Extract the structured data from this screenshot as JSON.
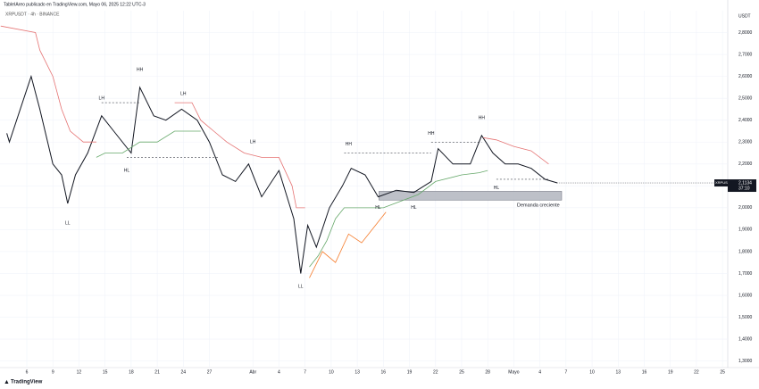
{
  "chart_data": {
    "type": "line",
    "title": "TableIAreo publicado en TradingView.com, Mayo 06, 2025 12:22 UTC-3",
    "subtitle": "XRPUSDT · 4h · BINANCE",
    "y_unit": "USDT",
    "brand": "TradingView",
    "grid": true,
    "xlim": [
      1.92,
      85.6
    ],
    "ylim": [
      1.27,
      2.9
    ],
    "xticks": [
      {
        "value": 5,
        "label": "6"
      },
      {
        "value": 8,
        "label": "9"
      },
      {
        "value": 11,
        "label": "12"
      },
      {
        "value": 14,
        "label": "15"
      },
      {
        "value": 17,
        "label": "18"
      },
      {
        "value": 20,
        "label": "21"
      },
      {
        "value": 23,
        "label": "24"
      },
      {
        "value": 26,
        "label": "27"
      },
      {
        "value": 31,
        "label": "Abr"
      },
      {
        "value": 34,
        "label": "4"
      },
      {
        "value": 37,
        "label": "7"
      },
      {
        "value": 40,
        "label": "10"
      },
      {
        "value": 43,
        "label": "13"
      },
      {
        "value": 46,
        "label": "16"
      },
      {
        "value": 49,
        "label": "19"
      },
      {
        "value": 52,
        "label": "22"
      },
      {
        "value": 55,
        "label": "25"
      },
      {
        "value": 58,
        "label": "28"
      },
      {
        "value": 61,
        "label": "Mayo"
      },
      {
        "value": 64,
        "label": "4"
      },
      {
        "value": 67,
        "label": "7"
      },
      {
        "value": 70,
        "label": "10"
      },
      {
        "value": 73,
        "label": "13"
      },
      {
        "value": 76,
        "label": "16"
      },
      {
        "value": 79,
        "label": "19"
      },
      {
        "value": 82,
        "label": "22"
      },
      {
        "value": 85,
        "label": "25"
      }
    ],
    "yticks": [
      {
        "value": 2.8,
        "label": "2,8000"
      },
      {
        "value": 2.7,
        "label": "2,7000"
      },
      {
        "value": 2.6,
        "label": "2,6000"
      },
      {
        "value": 2.5,
        "label": "2,5000"
      },
      {
        "value": 2.4,
        "label": "2,4000"
      },
      {
        "value": 2.3,
        "label": "2,3000"
      },
      {
        "value": 2.2,
        "label": "2,2000"
      },
      {
        "value": 2.1,
        "label": "2,1000"
      },
      {
        "value": 2.0,
        "label": "2,0000"
      },
      {
        "value": 1.9,
        "label": "1,9000"
      },
      {
        "value": 1.8,
        "label": "1,8000"
      },
      {
        "value": 1.7,
        "label": "1,7000"
      },
      {
        "value": 1.6,
        "label": "1,6000"
      },
      {
        "value": 1.5,
        "label": "1,5000"
      },
      {
        "value": 1.4,
        "label": "1,4000"
      },
      {
        "value": 1.3,
        "label": "1,3000"
      }
    ],
    "series": [
      {
        "name": "XRPUSDT",
        "color": "#131722",
        "x": [
          2.7,
          3,
          5,
          5.5,
          6.5,
          8,
          9,
          9.7,
          10.6,
          12,
          13.6,
          15,
          17,
          18,
          19.6,
          21,
          22.8,
          24.6,
          26,
          27.5,
          29,
          30.5,
          32,
          34,
          35.7,
          36.5,
          37.3,
          38.3,
          39.8,
          41.3,
          42.3,
          43.9,
          45.4,
          47.5,
          49.5,
          51.5,
          52.3,
          54,
          56,
          57.3,
          58.6,
          60,
          61.5,
          63,
          64.6,
          66
        ],
        "values": [
          2.34,
          2.3,
          2.54,
          2.6,
          2.45,
          2.2,
          2.15,
          2.02,
          2.15,
          2.25,
          2.42,
          2.35,
          2.25,
          2.55,
          2.42,
          2.4,
          2.45,
          2.4,
          2.3,
          2.15,
          2.12,
          2.2,
          2.05,
          2.17,
          1.95,
          1.7,
          1.92,
          1.82,
          2.0,
          2.1,
          2.18,
          2.15,
          2.05,
          2.08,
          2.07,
          2.12,
          2.27,
          2.2,
          2.2,
          2.33,
          2.25,
          2.2,
          2.2,
          2.18,
          2.13,
          2.1134
        ]
      },
      {
        "color": "#e57373",
        "x": [
          2,
          6,
          6.5,
          8,
          9,
          10,
          11.5,
          13,
          null,
          22,
          24,
          25,
          26.5,
          28,
          30,
          32,
          34,
          35.5,
          36,
          37,
          null,
          57.5,
          59,
          61,
          63,
          65
        ],
        "values": [
          2.83,
          2.8,
          2.72,
          2.6,
          2.45,
          2.35,
          2.3,
          2.3,
          null,
          2.48,
          2.48,
          2.4,
          2.35,
          2.3,
          2.25,
          2.23,
          2.23,
          2.1,
          2.0,
          2.0,
          null,
          2.32,
          2.31,
          2.28,
          2.26,
          2.2
        ]
      },
      {
        "color": "#66a86a",
        "x": [
          13,
          14,
          16,
          18,
          20,
          22,
          25,
          null,
          37.5,
          38.5,
          39.5,
          40.5,
          41.5,
          46,
          48,
          50,
          52,
          55,
          57,
          58
        ],
        "values": [
          2.23,
          2.25,
          2.25,
          2.3,
          2.3,
          2.35,
          2.35,
          null,
          1.73,
          1.78,
          1.85,
          1.95,
          2.0,
          2.0,
          2.03,
          2.06,
          2.12,
          2.15,
          2.16,
          2.17
        ]
      },
      {
        "color": "#f57c2c",
        "x": [
          37.5,
          39,
          40.5,
          42,
          43.5,
          46.3
        ],
        "values": [
          1.68,
          1.8,
          1.75,
          1.88,
          1.84,
          1.98
        ]
      }
    ],
    "price_label": {
      "name": "XRPUSDT",
      "value": 2.1134,
      "value_label": "2,1134",
      "countdown": "37:10"
    },
    "zone": {
      "x": [
        45.5,
        66.5
      ],
      "y": [
        2.035,
        2.075
      ],
      "label": "Demanda creciente"
    },
    "levels": [
      {
        "x": [
          13.6,
          18
        ],
        "y": 2.48
      },
      {
        "x": [
          16.5,
          27
        ],
        "y": 2.23
      },
      {
        "x": [
          41.5,
          51.5
        ],
        "y": 2.25
      },
      {
        "x": [
          51.5,
          57.3
        ],
        "y": 2.3
      },
      {
        "x": [
          59,
          65
        ],
        "y": 2.13
      }
    ],
    "annotations": [
      {
        "text": "LL",
        "x": 9.7,
        "y": 1.93
      },
      {
        "text": "LH",
        "x": 13.6,
        "y": 2.5
      },
      {
        "text": "HL",
        "x": 16.5,
        "y": 2.17
      },
      {
        "text": "HH",
        "x": 18,
        "y": 2.63
      },
      {
        "text": "LH",
        "x": 23,
        "y": 2.52
      },
      {
        "text": "LH",
        "x": 31,
        "y": 2.3
      },
      {
        "text": "LL",
        "x": 36.5,
        "y": 1.64
      },
      {
        "text": "HH",
        "x": 42,
        "y": 2.29
      },
      {
        "text": "HL",
        "x": 45.4,
        "y": 2.0
      },
      {
        "text": "HL",
        "x": 49.5,
        "y": 2.0
      },
      {
        "text": "HH",
        "x": 51.5,
        "y": 2.34
      },
      {
        "text": "HH",
        "x": 57.3,
        "y": 2.41
      },
      {
        "text": "HL",
        "x": 59,
        "y": 2.09
      }
    ]
  }
}
